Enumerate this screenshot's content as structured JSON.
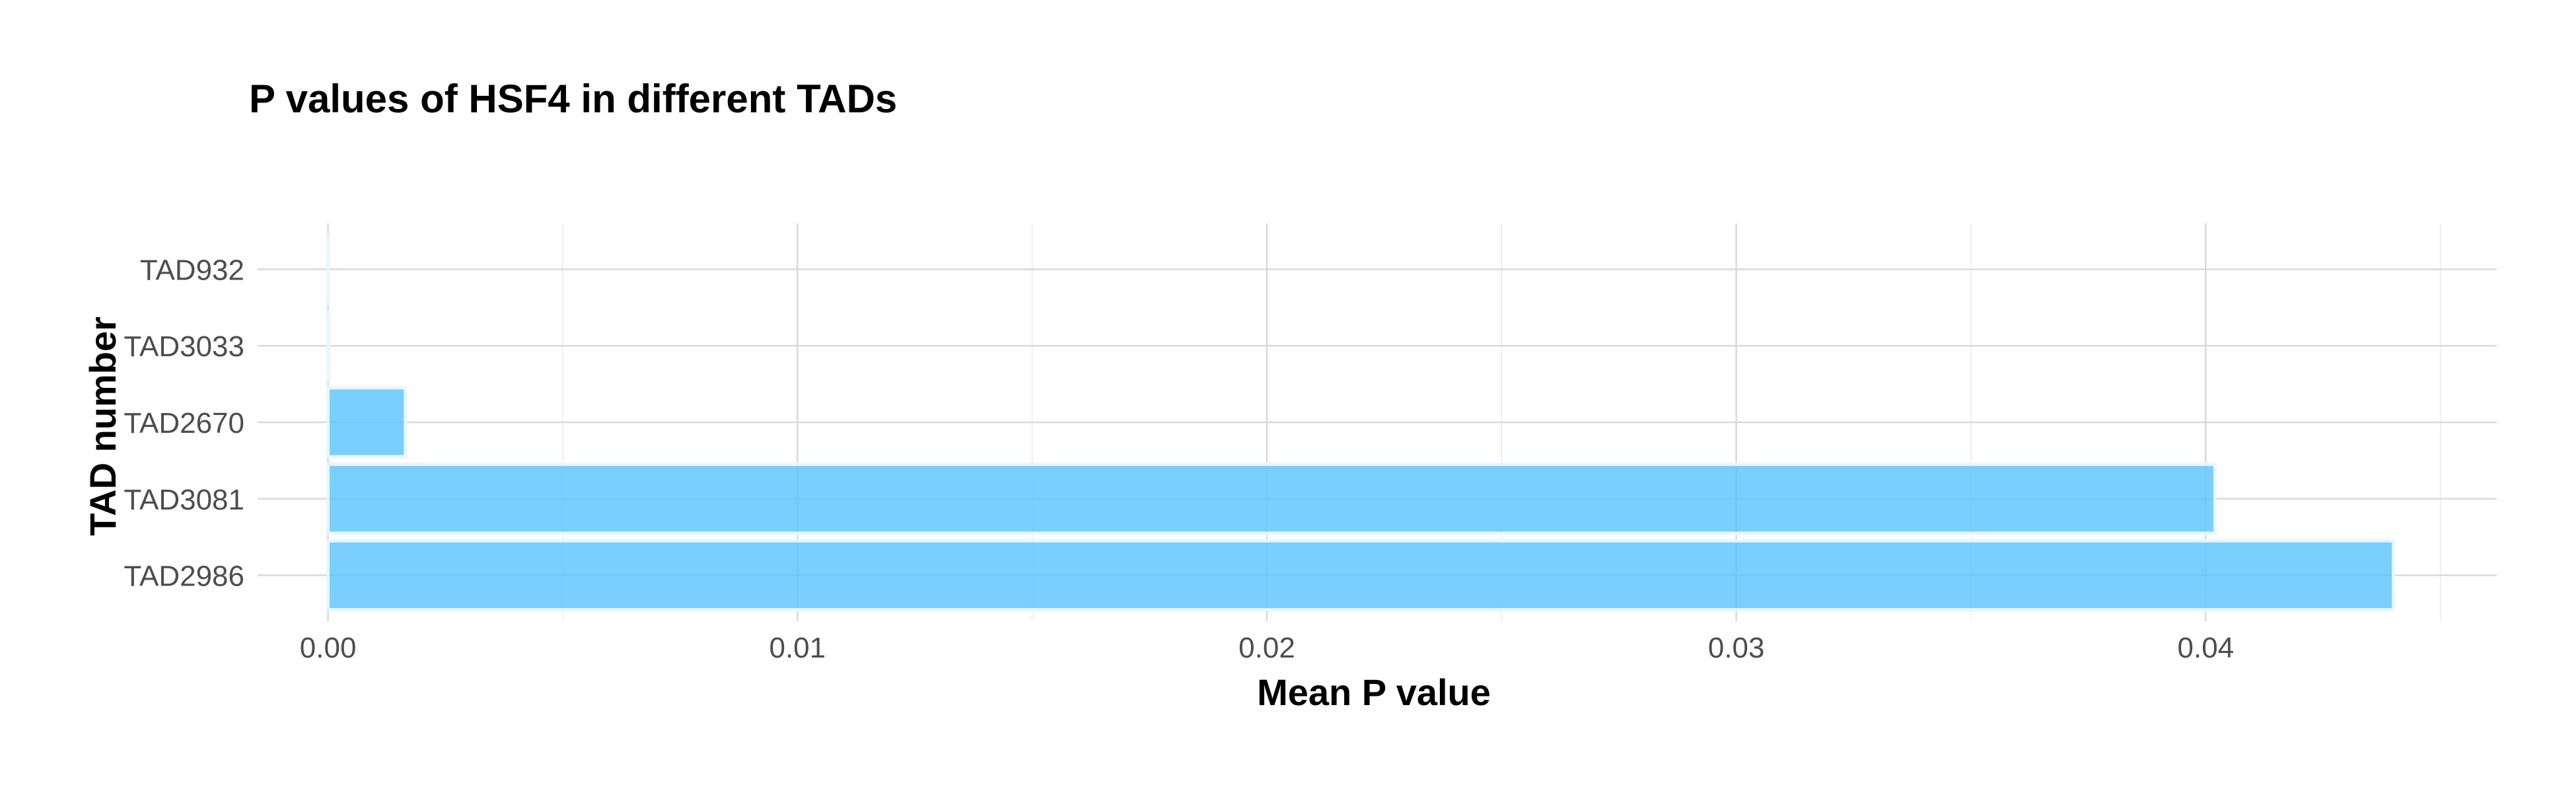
{
  "chart_data": {
    "type": "bar",
    "orientation": "horizontal",
    "title": "P values of HSF4 in different TADs",
    "xlabel": "Mean P value",
    "ylabel": "TAD number",
    "categories": [
      "TAD2986",
      "TAD3081",
      "TAD2670",
      "TAD3033",
      "TAD932"
    ],
    "values": [
      0.044,
      0.0402,
      0.00165,
      2e-05,
      1e-05
    ],
    "xlim": [
      -0.0015,
      0.0462
    ],
    "x_ticks": [
      0.0,
      0.01,
      0.02,
      0.03,
      0.04
    ],
    "x_tick_labels": [
      "0.00",
      "0.01",
      "0.02",
      "0.03",
      "0.04"
    ],
    "grid": true,
    "legend": "none",
    "bar_color": "#5bc4fd"
  }
}
